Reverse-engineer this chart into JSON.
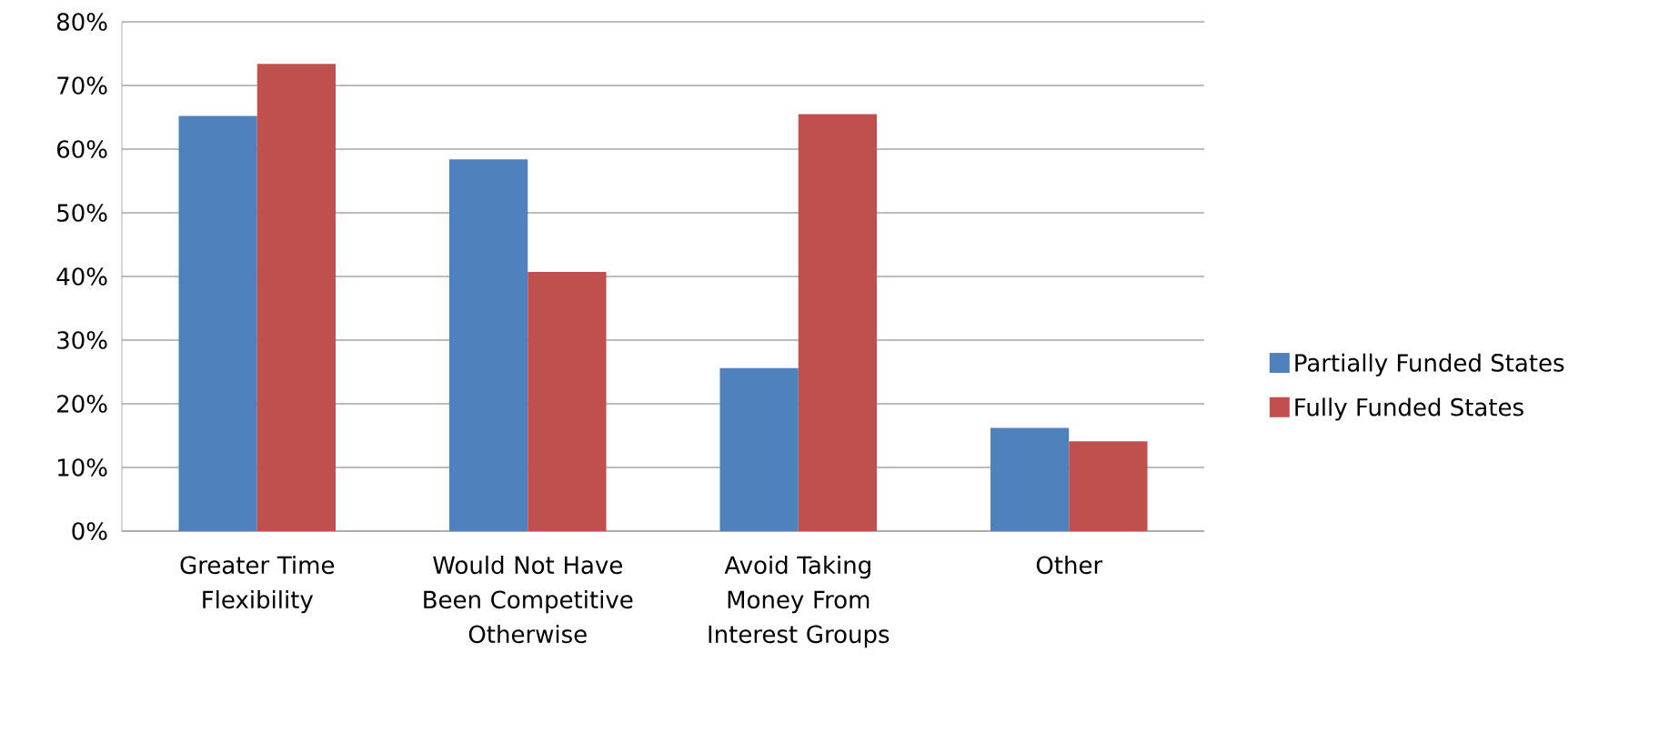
{
  "chart_data": {
    "type": "bar",
    "categories": [
      "Greater Time Flexibility",
      "Would Not Have Been Competitive Otherwise",
      "Avoid Taking Money From Interest Groups",
      "Other"
    ],
    "series": [
      {
        "name": "Partially Funded States",
        "color": "#4f81bd",
        "values": [
          65.2,
          58.4,
          25.6,
          16.2
        ]
      },
      {
        "name": "Fully Funded States",
        "color": "#c0504d",
        "values": [
          73.4,
          40.7,
          65.5,
          14.1
        ]
      }
    ],
    "ylim": [
      0,
      80
    ],
    "yticks": [
      {
        "value": 0,
        "label": "0%"
      },
      {
        "value": 10,
        "label": "10%"
      },
      {
        "value": 20,
        "label": "20%"
      },
      {
        "value": 30,
        "label": "30%"
      },
      {
        "value": 40,
        "label": "40%"
      },
      {
        "value": 50,
        "label": "50%"
      },
      {
        "value": 60,
        "label": "60%"
      },
      {
        "value": 70,
        "label": "70%"
      },
      {
        "value": 80,
        "label": "80%"
      }
    ],
    "grid": "y",
    "legend": "right"
  }
}
